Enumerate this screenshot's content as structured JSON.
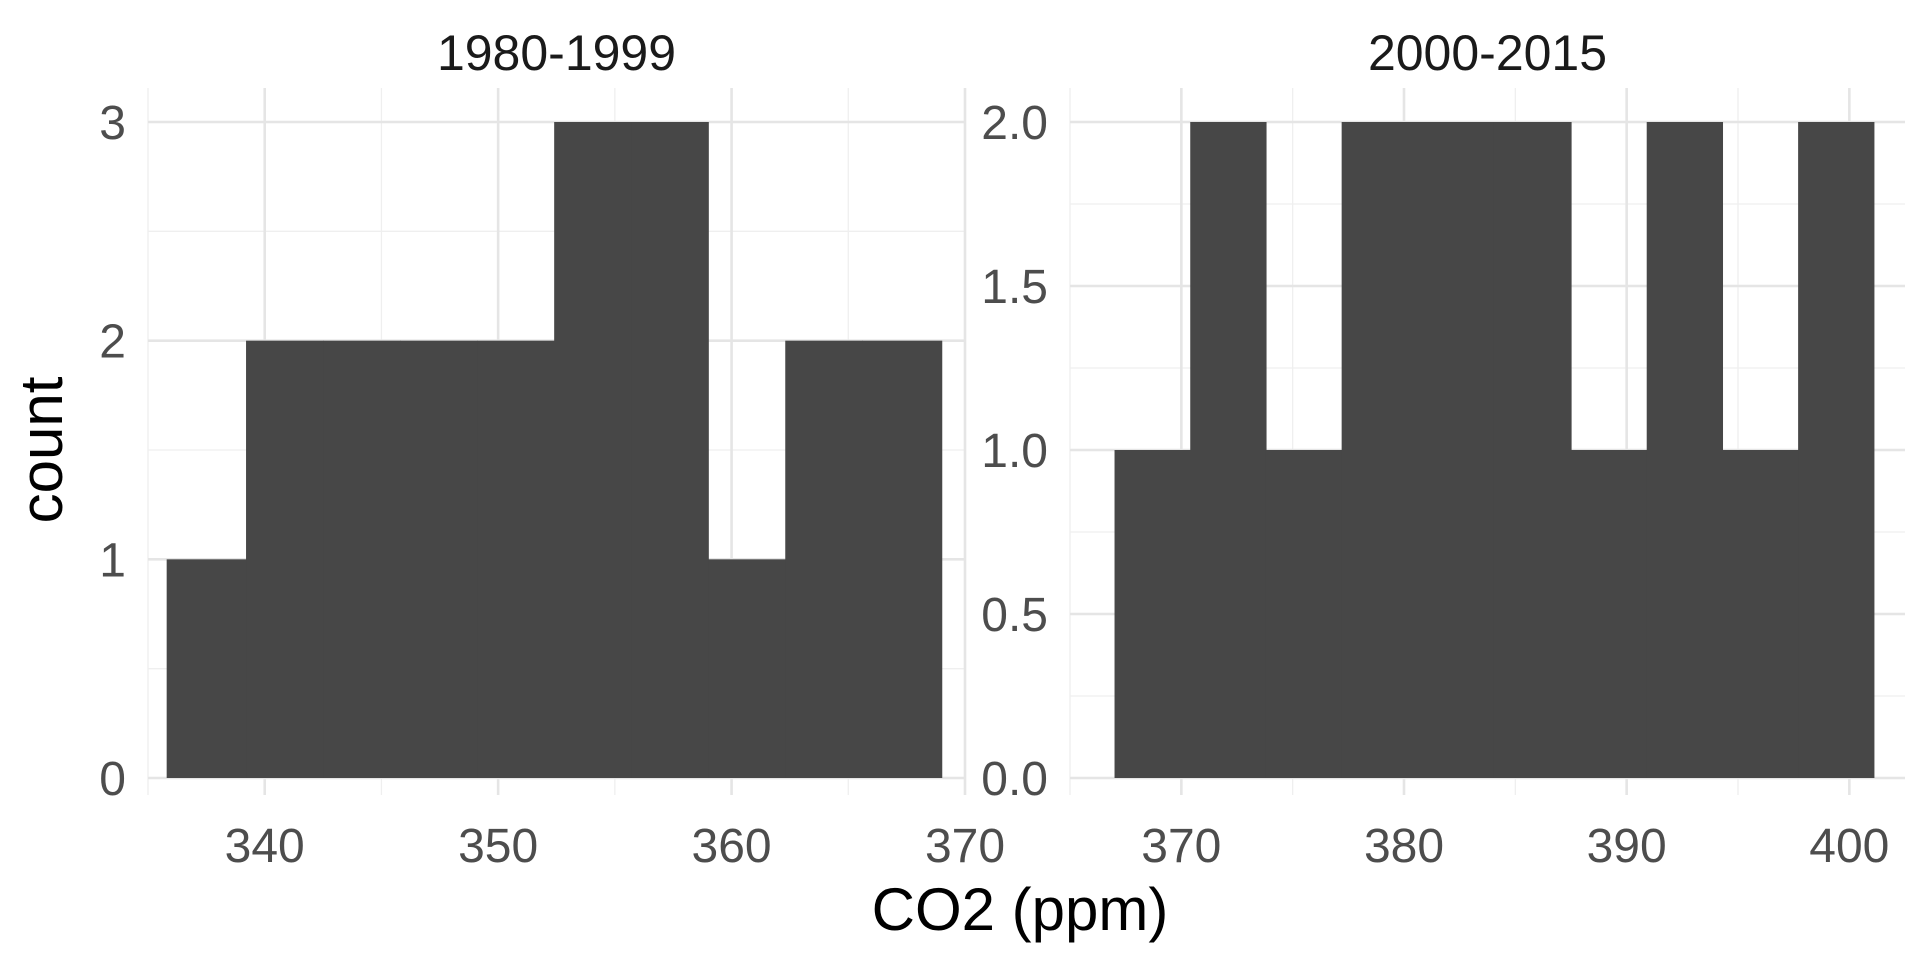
{
  "chart_data": {
    "type": "histogram",
    "xlabel": "CO2 (ppm)",
    "ylabel": "count",
    "bar_color": "#474747",
    "grid_color": "#ebebeb",
    "panels": [
      {
        "title": "1980-1999",
        "xlim": [
          335,
          370
        ],
        "ylim": [
          0,
          3
        ],
        "x_ticks": [
          340,
          350,
          360,
          370
        ],
        "x_tick_labels": [
          "340",
          "350",
          "360",
          "370"
        ],
        "y_ticks": [
          0,
          1,
          2,
          3
        ],
        "y_tick_labels": [
          "0",
          "1",
          "2",
          "3"
        ],
        "bins": [
          {
            "x0": 335.8,
            "x1": 339.2,
            "count": 1
          },
          {
            "x0": 339.2,
            "x1": 342.5,
            "count": 2
          },
          {
            "x0": 342.5,
            "x1": 345.8,
            "count": 2
          },
          {
            "x0": 345.8,
            "x1": 349.1,
            "count": 2
          },
          {
            "x0": 349.1,
            "x1": 352.4,
            "count": 2
          },
          {
            "x0": 352.4,
            "x1": 355.7,
            "count": 3
          },
          {
            "x0": 355.7,
            "x1": 359.0,
            "count": 3
          },
          {
            "x0": 359.0,
            "x1": 362.3,
            "count": 1
          },
          {
            "x0": 362.3,
            "x1": 365.6,
            "count": 2
          },
          {
            "x0": 365.6,
            "x1": 369.0,
            "count": 2
          }
        ]
      },
      {
        "title": "2000-2015",
        "xlim": [
          365,
          402.5
        ],
        "ylim": [
          0,
          2
        ],
        "x_ticks": [
          370,
          380,
          390,
          400
        ],
        "x_tick_labels": [
          "370",
          "380",
          "390",
          "400"
        ],
        "y_ticks": [
          0,
          0.5,
          1,
          1.5,
          2
        ],
        "y_tick_labels": [
          "0.0",
          "0.5",
          "1.0",
          "1.5",
          "2.0"
        ],
        "bins": [
          {
            "x0": 367.0,
            "x1": 370.4,
            "count": 1
          },
          {
            "x0": 370.4,
            "x1": 373.8,
            "count": 2
          },
          {
            "x0": 373.8,
            "x1": 377.2,
            "count": 1
          },
          {
            "x0": 377.2,
            "x1": 380.6,
            "count": 2
          },
          {
            "x0": 380.6,
            "x1": 384.0,
            "count": 2
          },
          {
            "x0": 384.0,
            "x1": 387.5,
            "count": 2
          },
          {
            "x0": 387.5,
            "x1": 390.9,
            "count": 1
          },
          {
            "x0": 390.9,
            "x1": 394.3,
            "count": 2
          },
          {
            "x0": 394.3,
            "x1": 397.7,
            "count": 1
          },
          {
            "x0": 397.7,
            "x1": 401.1,
            "count": 2
          }
        ]
      }
    ]
  }
}
